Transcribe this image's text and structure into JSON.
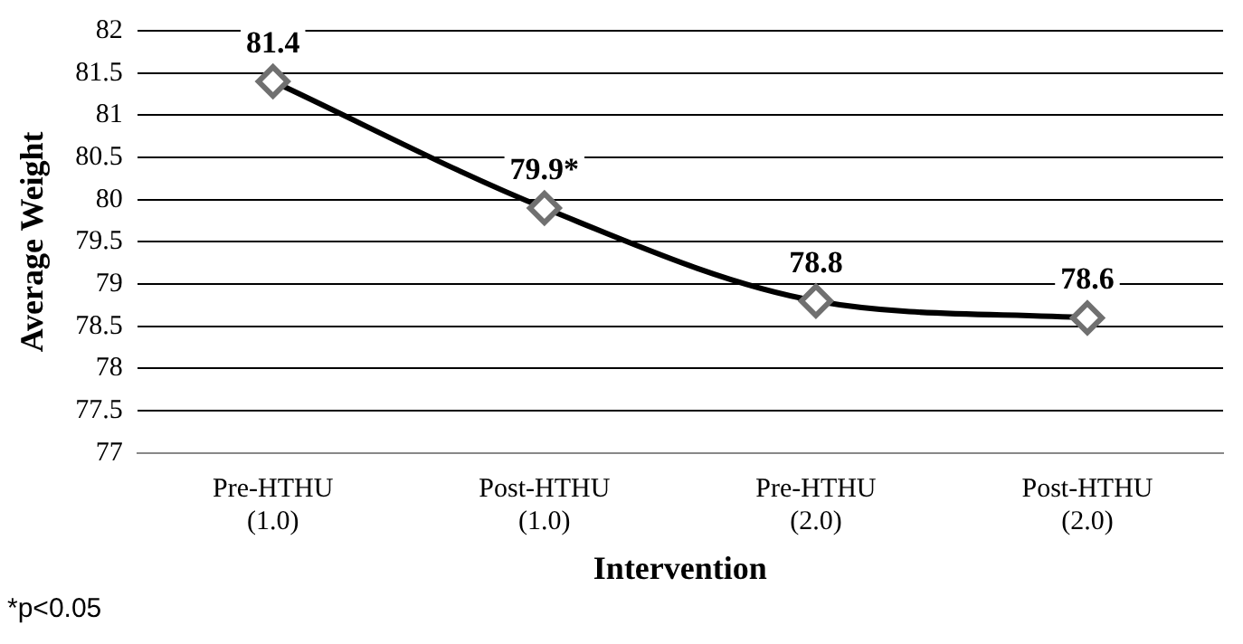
{
  "chart_data": {
    "type": "line",
    "xlabel": "Intervention",
    "ylabel": "Average Weight",
    "categories": [
      "Pre-HTHU (1.0)",
      "Post-HTHU (1.0)",
      "Pre-HTHU (2.0)",
      "Post-HTHU (2.0)"
    ],
    "series": [
      {
        "color": "#000000",
        "values": [
          81.4,
          79.9,
          78.8,
          78.6
        ],
        "value_labels": [
          "81.4",
          "79.9*",
          "78.8",
          "78.6"
        ]
      }
    ],
    "ylim": [
      77,
      82
    ],
    "yticks": [
      77,
      77.5,
      78,
      78.5,
      79,
      79.5,
      80,
      80.5,
      81,
      81.5,
      82
    ],
    "grid": "y",
    "legend": false,
    "marker": "diamond",
    "line_style": "solid",
    "annotations": [
      "*p<0.05"
    ]
  }
}
